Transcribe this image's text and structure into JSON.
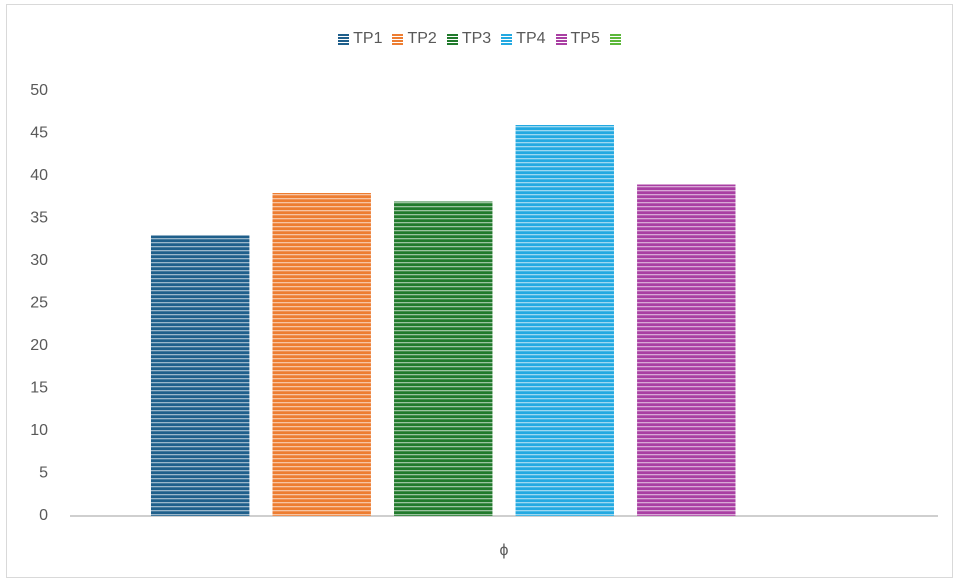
{
  "chart_data": {
    "type": "bar",
    "categories": [
      "ϕ"
    ],
    "series": [
      {
        "name": "TP1",
        "color": "#1f5f8b",
        "values": [
          33
        ]
      },
      {
        "name": "TP2",
        "color": "#ed7d31",
        "values": [
          38
        ]
      },
      {
        "name": "TP3",
        "color": "#217a2c",
        "values": [
          37
        ]
      },
      {
        "name": "TP4",
        "color": "#23a9e1",
        "values": [
          46
        ]
      },
      {
        "name": "TP5",
        "color": "#a93fa3",
        "values": [
          39
        ]
      },
      {
        "name": null,
        "color": "#5cb83a",
        "values": [
          null
        ]
      }
    ],
    "ylim": [
      0,
      50
    ],
    "yticks": [
      0,
      5,
      10,
      15,
      20,
      25,
      30,
      35,
      40,
      45,
      50
    ],
    "grid": false,
    "legend": "top"
  }
}
